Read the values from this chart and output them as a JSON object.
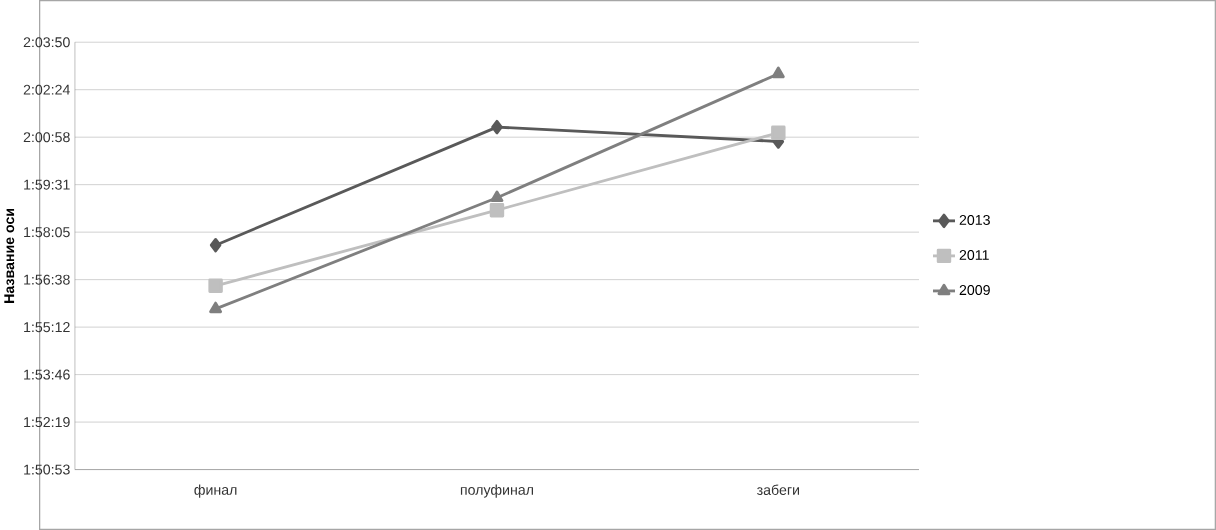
{
  "chart_data": {
    "type": "line",
    "ylabel": "Название оси",
    "categories": [
      "финал",
      "полуфинал",
      "забеги"
    ],
    "series": [
      {
        "name": "2013",
        "color": "#595959",
        "marker": "diamond",
        "values": [
          1.9614,
          2.0211,
          2.0138
        ]
      },
      {
        "name": "2011",
        "color": "#bfbfbf",
        "marker": "square",
        "values": [
          1.9409,
          1.9791,
          2.0182
        ]
      },
      {
        "name": "2009",
        "color": "#7f7f7f",
        "marker": "triangle",
        "values": [
          1.9292,
          1.9854,
          2.048
        ]
      }
    ],
    "ylim": [
      1.848,
      2.064
    ],
    "yticks": [
      {
        "value": 1.848,
        "label": "1:50:53"
      },
      {
        "value": 1.872,
        "label": "1:52:19"
      },
      {
        "value": 1.896,
        "label": "1:53:46"
      },
      {
        "value": 1.92,
        "label": "1:55:12"
      },
      {
        "value": 1.944,
        "label": "1:56:38"
      },
      {
        "value": 1.968,
        "label": "1:58:05"
      },
      {
        "value": 1.992,
        "label": "1:59:31"
      },
      {
        "value": 2.016,
        "label": "2:00:58"
      },
      {
        "value": 2.04,
        "label": "2:02:24"
      },
      {
        "value": 2.064,
        "label": "2:03:50"
      }
    ],
    "grid": "y",
    "legend": "right",
    "line_style": "solid"
  }
}
